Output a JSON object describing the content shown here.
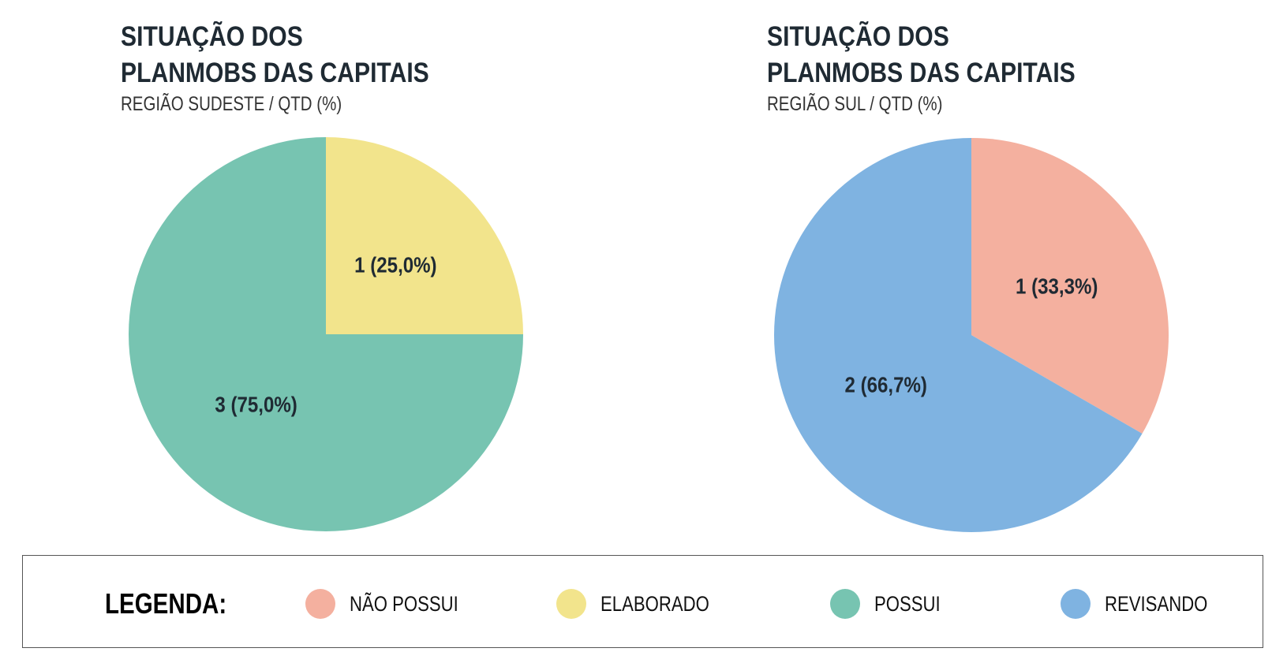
{
  "legend": {
    "title": "LEGENDA:",
    "items": [
      {
        "label": "NÃO POSSUI",
        "color": "#F4B09F"
      },
      {
        "label": "ELABORADO",
        "color": "#F2E48C"
      },
      {
        "label": "POSSUI",
        "color": "#77C4B1"
      },
      {
        "label": "REVISANDO",
        "color": "#7FB3E1"
      }
    ]
  },
  "chart_data": [
    {
      "type": "pie",
      "title_line1": "SITUAÇÃO DOS",
      "title_line2": "PLANMOBS DAS CAPITAIS",
      "subtitle": "REGIÃO SUDESTE / QTD (%)",
      "slices": [
        {
          "category": "ELABORADO",
          "value": 1,
          "percent": 25.0,
          "label": "1 (25,0%)",
          "color": "#F2E48C"
        },
        {
          "category": "POSSUI",
          "value": 3,
          "percent": 75.0,
          "label": "3 (75,0%)",
          "color": "#77C4B1"
        }
      ]
    },
    {
      "type": "pie",
      "title_line1": "SITUAÇÃO DOS",
      "title_line2": "PLANMOBS DAS CAPITAIS",
      "subtitle": "REGIÃO SUL / QTD (%)",
      "slices": [
        {
          "category": "NÃO POSSUI",
          "value": 1,
          "percent": 33.3,
          "label": "1 (33,3%)",
          "color": "#F4B09F"
        },
        {
          "category": "REVISANDO",
          "value": 2,
          "percent": 66.7,
          "label": "2 (66,7%)",
          "color": "#7FB3E1"
        }
      ]
    }
  ]
}
